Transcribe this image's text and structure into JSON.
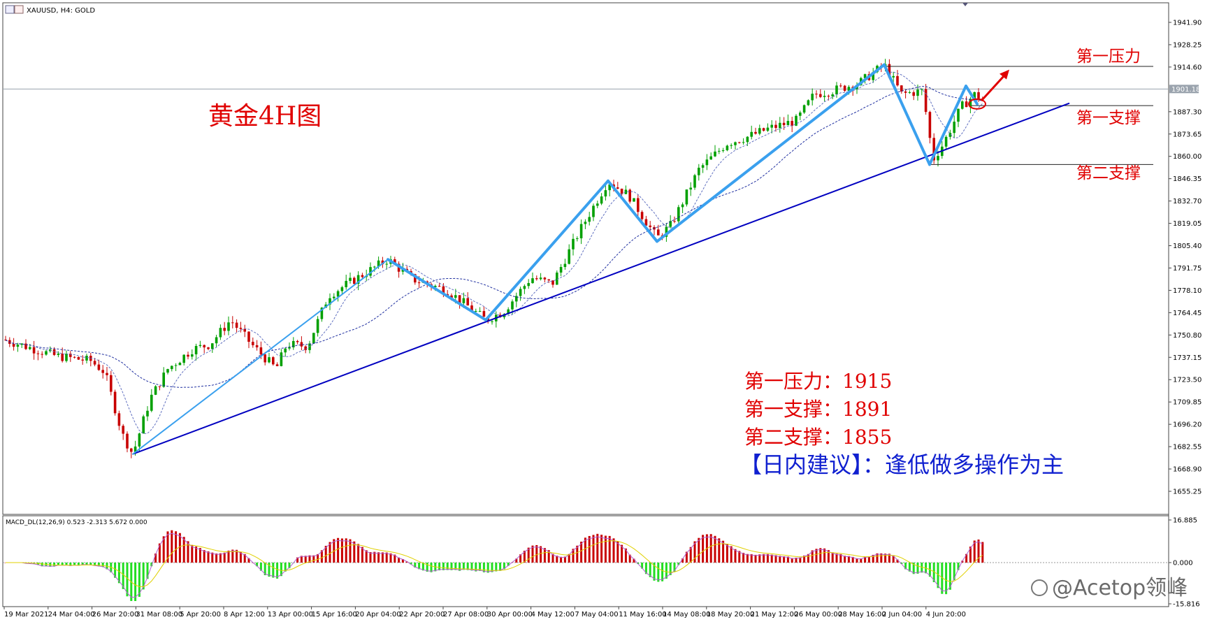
{
  "window_title": "XAUUSD, H4:  GOLD",
  "watermark": "@Acetop领峰",
  "annotations": {
    "chart_label": "黄金4H图",
    "res1_label": "第一压力",
    "sup1_label": "第一支撑",
    "sup2_label": "第二支撑",
    "info_res1": "第一压力：1915",
    "info_sup1": "第一支撑：1891",
    "info_sup2": "第二支撑：1855",
    "advice": "【日内建议】：逢低做多操作为主"
  },
  "colors": {
    "bull": "#00a000",
    "bear": "#c80000",
    "trendline": "#0000c0",
    "wave": "#3aa0ee",
    "red_arrow": "#e00000",
    "macd_line": "#b060d0",
    "signal_line": "#e0d000",
    "text_red": "#e00000",
    "text_blue": "#1020d0"
  },
  "chart_data": [
    {
      "type": "candlestick",
      "symbol": "XAUUSD, H4",
      "price_ticks": [
        "1941.90",
        "1928.25",
        "1914.60",
        "1901.18",
        "1887.30",
        "1873.65",
        "1860.00",
        "1846.35",
        "1832.70",
        "1819.05",
        "1805.40",
        "1791.75",
        "1778.10",
        "1764.45",
        "1750.80",
        "1737.15",
        "1723.50",
        "1709.85",
        "1696.20",
        "1682.55",
        "1668.90",
        "1655.25"
      ],
      "current_price": 1901.18,
      "levels": {
        "first_resistance": 1915,
        "first_support": 1891,
        "second_support": 1855
      },
      "time_ticks": [
        "19 Mar 2021",
        "24 Mar 04:00",
        "26 Mar 20:00",
        "31 Mar 08:00",
        "5 Apr 20:00",
        "8 Apr 12:00",
        "13 Apr 00:00",
        "15 Apr 16:00",
        "20 Apr 04:00",
        "22 Apr 20:00",
        "27 Apr 08:00",
        "30 Apr 00:00",
        "4 May 12:00",
        "7 May 04:00",
        "11 May 16:00",
        "14 May 08:00",
        "18 May 20:00",
        "21 May 12:00",
        "26 May 00:00",
        "28 May 16:00",
        "2 Jun 04:00",
        "4 Jun 20:00"
      ],
      "swing_points": [
        {
          "label": "31 Mar low",
          "price": 1678
        },
        {
          "label": "20 Apr high",
          "price": 1797
        },
        {
          "label": "27 Apr low",
          "price": 1760
        },
        {
          "label": "7 May high",
          "price": 1845
        },
        {
          "label": "11 May low",
          "price": 1808
        },
        {
          "label": "1 Jun high",
          "price": 1916
        },
        {
          "label": "3 Jun low",
          "price": 1855
        },
        {
          "label": "4 Jun high",
          "price": 1903
        }
      ],
      "ylim": [
        1645,
        1952
      ]
    },
    {
      "type": "bar",
      "name": "MACD_DL(12,26,9) 0.523 -2.313 5.672 0.000",
      "ticks": [
        "16.885",
        "0.000",
        "-15.816"
      ],
      "ylim": [
        -15.816,
        16.885
      ]
    }
  ]
}
